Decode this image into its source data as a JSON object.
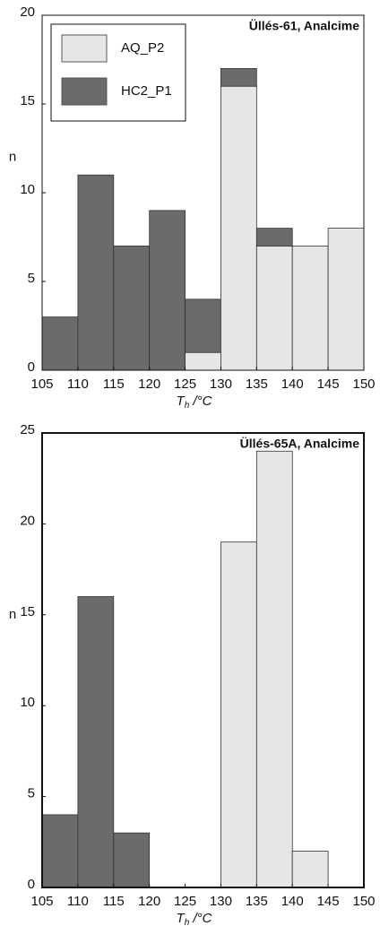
{
  "chart_data": [
    {
      "type": "histogram",
      "title": "Üllés-61, Analcime",
      "ylabel": "n",
      "xlabel": "T",
      "xlabel_subscript": "h",
      "xlabel_unit": " /°C",
      "bins": [
        105,
        110,
        115,
        120,
        125,
        130,
        135,
        140,
        145,
        150
      ],
      "series": [
        {
          "name": "AQ_P2",
          "color": "#e6e6e6",
          "values": [
            0,
            0,
            0,
            0,
            1,
            16,
            7,
            7,
            8
          ]
        },
        {
          "name": "HC2_P1",
          "color": "#6b6b6b",
          "values": [
            3,
            11,
            7,
            9,
            3,
            1,
            1,
            0,
            0
          ]
        }
      ],
      "xlim": [
        105,
        150
      ],
      "xticks": [
        105,
        110,
        115,
        120,
        125,
        130,
        135,
        140,
        145,
        150
      ],
      "ylim": [
        0,
        20
      ],
      "yticks": [
        0,
        5,
        10,
        15,
        20
      ],
      "legend": "upper left"
    },
    {
      "type": "histogram",
      "title": "Üllés-65A, Analcime",
      "ylabel": "n",
      "xlabel": "T",
      "xlabel_subscript": "h",
      "xlabel_unit": " /°C",
      "bins": [
        105,
        110,
        115,
        120,
        125,
        130,
        135,
        140,
        145,
        150
      ],
      "series": [
        {
          "color": "#e6e6e6",
          "values": [
            0,
            0,
            0,
            0,
            0,
            19,
            24,
            2,
            0
          ]
        },
        {
          "color": "#6b6b6b",
          "values": [
            4,
            16,
            3,
            0,
            0,
            0,
            0,
            0,
            0
          ]
        }
      ],
      "xlim": [
        105,
        150
      ],
      "xticks": [
        105,
        110,
        115,
        120,
        125,
        130,
        135,
        140,
        145,
        150
      ],
      "ylim": [
        0,
        25
      ],
      "yticks": [
        0,
        5,
        10,
        15,
        20,
        25
      ]
    }
  ]
}
